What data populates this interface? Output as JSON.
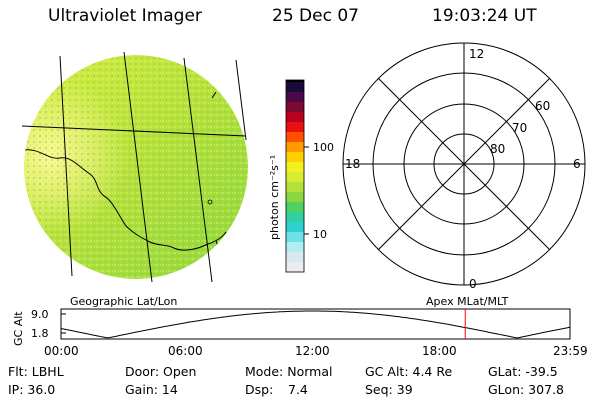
{
  "header": {
    "instrument": "Ultraviolet Imager",
    "date": "25 Dec 07",
    "time": "19:03:24 UT"
  },
  "colorbar": {
    "unit_label": "photon cm⁻²s⁻¹",
    "ticks": [
      "100",
      "10"
    ],
    "scale": "log"
  },
  "polar_plot": {
    "mlt_labels": [
      "12",
      "18",
      "6",
      "0"
    ],
    "lat_labels": [
      "60",
      "70",
      "80"
    ]
  },
  "map_labels": {
    "left": "Geographic Lat/Lon",
    "right": "Apex MLat/MLT"
  },
  "timeline": {
    "ylabel": "GC Alt",
    "yticks": [
      "9.0",
      "1.8"
    ],
    "xticks": [
      "00:00",
      "06:00",
      "12:00",
      "18:00",
      "23:59"
    ],
    "current_time_hours": 19.06,
    "marker_color": "#ff0000"
  },
  "status": {
    "flt": "Flt: LBHL",
    "door": "Door: Open",
    "mode": "Mode: Normal",
    "gc_alt": "GC Alt: 4.4 Re",
    "glat": "GLat: -39.5",
    "ip": "IP: 36.0",
    "gain": "Gain: 14",
    "dsp_label": "Dsp:",
    "dsp_value": "7.4",
    "seq": "Seq: 39",
    "glon": "GLon: 307.8"
  }
}
